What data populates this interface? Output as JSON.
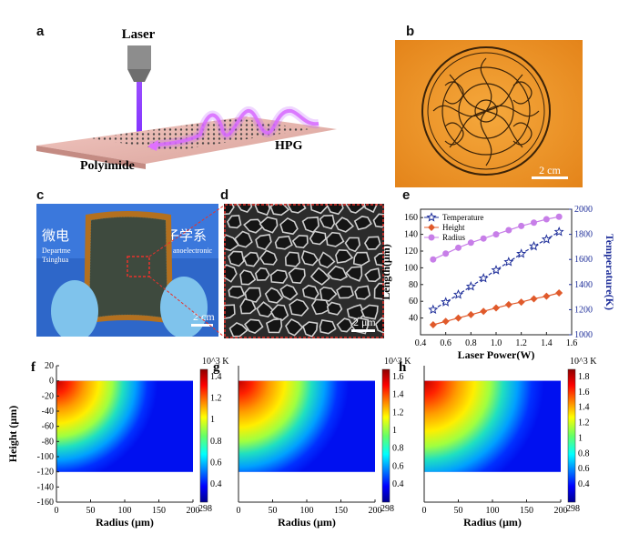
{
  "panels": {
    "a": {
      "label": "a",
      "laser": "Laser",
      "substrate": "Polyimide",
      "product": "HPG"
    },
    "b": {
      "label": "b",
      "scale_bar": "2 cm"
    },
    "c": {
      "label": "c",
      "scale_bar": "2 cm",
      "sign_line1": "微电",
      "sign_line1b": "子学系",
      "sign_line2a": "Departme",
      "sign_line2b": "anoelectronic",
      "sign_line3": "Tsinghua"
    },
    "d": {
      "label": "d",
      "scale_bar": "2 μm"
    },
    "e": {
      "label": "e"
    },
    "f": {
      "label": "f"
    },
    "g": {
      "label": "g"
    },
    "h": {
      "label": "h"
    }
  },
  "chart_data": [
    {
      "panel": "e",
      "type": "line",
      "xlabel": "Laser Power(W)",
      "ylabel": "Length(μm)",
      "y2label": "Temperature(K)",
      "x": [
        0.5,
        0.6,
        0.7,
        0.8,
        0.9,
        1.0,
        1.1,
        1.2,
        1.3,
        1.4,
        1.5
      ],
      "xlim": [
        0.4,
        1.6
      ],
      "ylim": [
        20,
        170
      ],
      "y2lim": [
        1000,
        2000
      ],
      "xticks": [
        "0.4",
        "0.6",
        "0.8",
        "1.0",
        "1.2",
        "1.4",
        "1.6"
      ],
      "yticks": [
        "40",
        "60",
        "80",
        "100",
        "120",
        "140",
        "160"
      ],
      "y2ticks": [
        "1000",
        "1200",
        "1400",
        "1600",
        "1800",
        "2000"
      ],
      "legend_position": "top-left",
      "series": [
        {
          "name": "Temperature",
          "axis": "right",
          "marker": "star",
          "color": "#1f2f9a",
          "values": [
            1200,
            1260,
            1320,
            1385,
            1450,
            1515,
            1580,
            1645,
            1705,
            1760,
            1820
          ]
        },
        {
          "name": "Height",
          "axis": "left",
          "marker": "diamond",
          "color": "#e05a2b",
          "values": [
            32,
            36,
            40,
            44,
            48,
            52,
            56,
            59,
            63,
            66,
            70
          ]
        },
        {
          "name": "Radius",
          "axis": "left",
          "marker": "circle",
          "color": "#c77ee8",
          "values": [
            110,
            117,
            124,
            130,
            135,
            140,
            145,
            150,
            154,
            158,
            161
          ]
        }
      ]
    },
    {
      "panel": "f",
      "type": "heatmap",
      "xlabel": "Radius (μm)",
      "ylabel": "Height (μm)",
      "xlim": [
        0,
        200
      ],
      "ylim": [
        -160,
        20
      ],
      "xticks": [
        "0",
        "50",
        "100",
        "150",
        "200"
      ],
      "yticks": [
        "20",
        "0",
        "-20",
        "-40",
        "-60",
        "-80",
        "-100",
        "-120",
        "-140",
        "-160"
      ],
      "colorbar_title": "10^3 K",
      "colorbar_bottom": "298",
      "colorbar_ticks": [
        "1.4",
        "1.2",
        "1",
        "0.8",
        "0.6",
        "0.4"
      ],
      "peak_temperature_kK": 1.5,
      "heat_radius_um": 110
    },
    {
      "panel": "g",
      "type": "heatmap",
      "xlabel": "Radius (μm)",
      "xlim": [
        0,
        200
      ],
      "ylim": [
        -160,
        20
      ],
      "xticks": [
        "0",
        "50",
        "100",
        "150",
        "200"
      ],
      "colorbar_title": "10^3 K",
      "colorbar_bottom": "298",
      "colorbar_ticks": [
        "1.6",
        "1.4",
        "1.2",
        "1",
        "0.8",
        "0.6",
        "0.4"
      ],
      "peak_temperature_kK": 1.7,
      "heat_radius_um": 120
    },
    {
      "panel": "h",
      "type": "heatmap",
      "xlabel": "Radius (μm)",
      "xlim": [
        0,
        200
      ],
      "ylim": [
        -160,
        20
      ],
      "xticks": [
        "0",
        "50",
        "100",
        "150",
        "200"
      ],
      "colorbar_title": "10^3 K",
      "colorbar_bottom": "298",
      "colorbar_ticks": [
        "1.8",
        "1.6",
        "1.4",
        "1.2",
        "1",
        "0.8",
        "0.6",
        "0.4"
      ],
      "peak_temperature_kK": 1.85,
      "heat_radius_um": 130
    }
  ]
}
